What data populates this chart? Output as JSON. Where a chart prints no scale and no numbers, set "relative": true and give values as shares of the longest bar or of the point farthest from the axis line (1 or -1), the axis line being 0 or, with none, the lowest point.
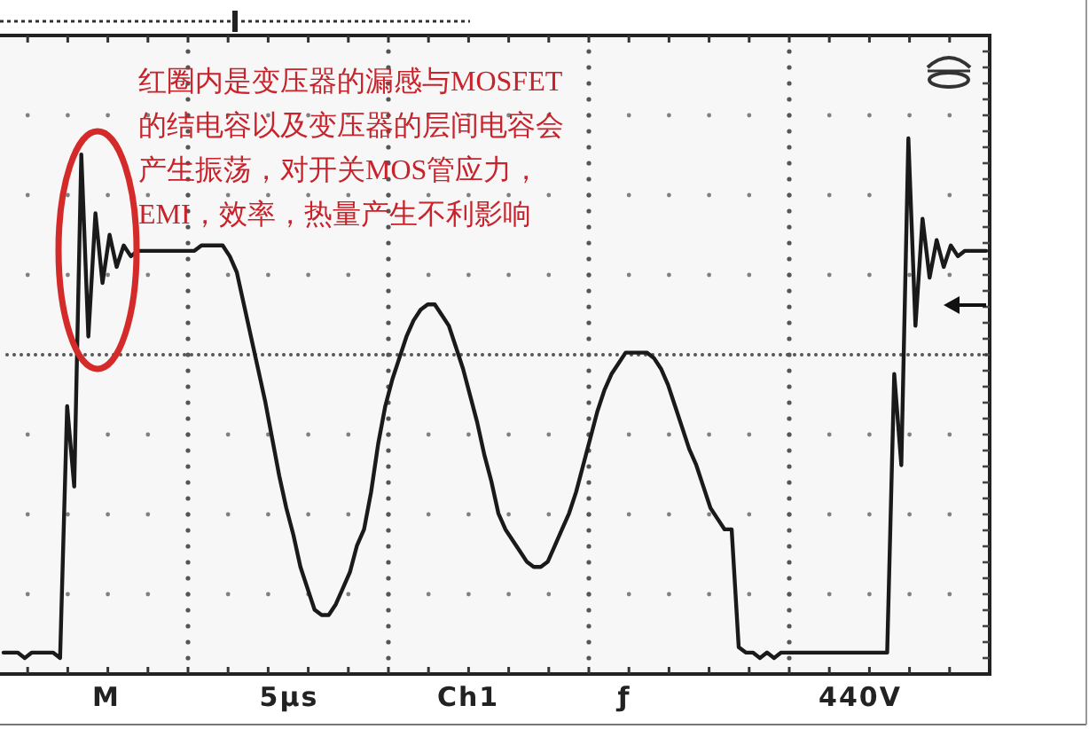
{
  "chart_data": {
    "type": "line",
    "relative": true,
    "color": "#1a1a1a",
    "categories": [
      null,
      null,
      null,
      null,
      null,
      null,
      null,
      null,
      null,
      null,
      null,
      null,
      null,
      null,
      null,
      null,
      null,
      null,
      null,
      null,
      null,
      null,
      null,
      null,
      null,
      null,
      null,
      null,
      null,
      null,
      null,
      null,
      null,
      null,
      null,
      null,
      null,
      null,
      null,
      null,
      null,
      null,
      null,
      null,
      null,
      null,
      null,
      null,
      null,
      null,
      null,
      null,
      null,
      null,
      null,
      null,
      null,
      null,
      null,
      null,
      null,
      null,
      null,
      null,
      null,
      null,
      null,
      null,
      null,
      null,
      null,
      null,
      null,
      null,
      null,
      null,
      null,
      null,
      null,
      null,
      null,
      null,
      null,
      null,
      null,
      null,
      null,
      null,
      null,
      null,
      null,
      null,
      null,
      null,
      null,
      null,
      null,
      null,
      null,
      null,
      null,
      null,
      null,
      null,
      null,
      null,
      null,
      null,
      null,
      null,
      null,
      null,
      null,
      null,
      null,
      null,
      null,
      null,
      null,
      null,
      null,
      null,
      null,
      null,
      null,
      null,
      null,
      null,
      null,
      null,
      null,
      null,
      null,
      null,
      null,
      null,
      null,
      null,
      null,
      null
    ],
    "values": [
      0.04,
      0.04,
      0.04,
      0.03,
      0.04,
      0.04,
      0.04,
      0.04,
      0.03,
      0.5,
      0.35,
      0.97,
      0.63,
      0.86,
      0.73,
      0.82,
      0.76,
      0.8,
      0.78,
      0.79,
      0.79,
      0.79,
      0.79,
      0.79,
      0.79,
      0.79,
      0.79,
      0.79,
      0.8,
      0.8,
      0.8,
      0.8,
      0.78,
      0.75,
      0.69,
      0.63,
      0.57,
      0.51,
      0.44,
      0.37,
      0.31,
      0.26,
      0.2,
      0.16,
      0.12,
      0.11,
      0.11,
      0.13,
      0.16,
      0.19,
      0.24,
      0.27,
      0.34,
      0.43,
      0.5,
      0.55,
      0.59,
      0.63,
      0.66,
      0.68,
      0.69,
      0.69,
      0.67,
      0.65,
      0.61,
      0.57,
      0.52,
      0.47,
      0.41,
      0.36,
      0.3,
      0.27,
      0.25,
      0.23,
      0.21,
      0.2,
      0.2,
      0.21,
      0.24,
      0.27,
      0.3,
      0.34,
      0.39,
      0.44,
      0.49,
      0.53,
      0.56,
      0.58,
      0.6,
      0.6,
      0.6,
      0.6,
      0.59,
      0.57,
      0.54,
      0.5,
      0.46,
      0.42,
      0.39,
      0.35,
      0.31,
      0.29,
      0.27,
      0.27,
      0.05,
      0.04,
      0.04,
      0.03,
      0.04,
      0.03,
      0.04,
      0.04,
      0.04,
      0.04,
      0.04,
      0.04,
      0.04,
      0.04,
      0.04,
      0.04,
      0.04,
      0.04,
      0.04,
      0.04,
      0.04,
      0.04,
      0.56,
      0.39,
      1,
      0.65,
      0.85,
      0.74,
      0.81,
      0.76,
      0.8,
      0.78,
      0.79,
      0.79,
      0.79,
      0.79
    ],
    "annotations": [
      "红圈内是变压器的漏感与MOSFET的结电容以及变压器的层间电容会产生振荡，对开关MOS管应力，EMI，效率，热量产生不利影响",
      "M",
      "5μs",
      "Ch1",
      "ƒ",
      "440V"
    ]
  }
}
